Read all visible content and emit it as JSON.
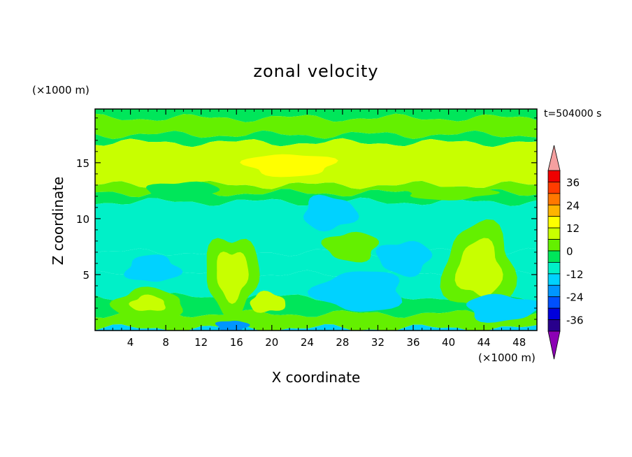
{
  "chart_data": {
    "type": "heatmap",
    "title": "zonal velocity",
    "xlabel": "X coordinate",
    "ylabel": "Z coordinate",
    "x_unit_label": "(×1000 m)",
    "y_unit_label": "(×1000 m)",
    "time_label": "t=504000 s",
    "xlim": [
      0,
      50
    ],
    "ylim": [
      0,
      19.8
    ],
    "x_ticks": [
      4,
      8,
      12,
      16,
      20,
      24,
      28,
      32,
      36,
      40,
      44,
      48
    ],
    "y_ticks": [
      5,
      10,
      15
    ],
    "colorbar": {
      "tick_labels": [
        "36",
        "24",
        "12",
        "0",
        "-12",
        "-24",
        "-36"
      ],
      "tick_values": [
        36,
        24,
        12,
        0,
        -12,
        -24,
        -36
      ],
      "levels": [
        {
          "from": 36,
          "to": 42,
          "color": "#f00000"
        },
        {
          "from": 30,
          "to": 36,
          "color": "#ff3c00"
        },
        {
          "from": 24,
          "to": 30,
          "color": "#ff7800"
        },
        {
          "from": 18,
          "to": 24,
          "color": "#ffb400"
        },
        {
          "from": 12,
          "to": 18,
          "color": "#ffff00"
        },
        {
          "from": 6,
          "to": 12,
          "color": "#c8ff00"
        },
        {
          "from": 0,
          "to": 6,
          "color": "#64f000"
        },
        {
          "from": -6,
          "to": 0,
          "color": "#00e65a"
        },
        {
          "from": -12,
          "to": -6,
          "color": "#00f0c8"
        },
        {
          "from": -18,
          "to": -12,
          "color": "#00d2ff"
        },
        {
          "from": -24,
          "to": -18,
          "color": "#0096ff"
        },
        {
          "from": -30,
          "to": -24,
          "color": "#0050ff"
        },
        {
          "from": -36,
          "to": -30,
          "color": "#0000dc"
        },
        {
          "from": -42,
          "to": -36,
          "color": "#28008c"
        }
      ],
      "over_color": "#f5a0a0",
      "under_color": "#8c00b4"
    },
    "field_bands": [
      {
        "z": [
          19.0,
          19.8
        ],
        "u": -3
      },
      {
        "z": [
          17.5,
          19.0
        ],
        "u": 2
      },
      {
        "z": [
          16.8,
          17.5
        ],
        "u": -3
      },
      {
        "z": [
          13.0,
          16.8
        ],
        "u": 8
      },
      {
        "z": [
          12.3,
          13.0
        ],
        "u": 3
      },
      {
        "z": [
          11.5,
          12.3
        ],
        "u": -3
      },
      {
        "z": [
          7.0,
          11.5
        ],
        "u": -9
      },
      {
        "z": [
          5.0,
          7.0
        ],
        "u": -8
      },
      {
        "z": [
          3.0,
          5.0
        ],
        "u": -10
      },
      {
        "z": [
          1.5,
          3.0
        ],
        "u": -3
      },
      {
        "z": [
          0.2,
          1.5
        ],
        "u": 2
      },
      {
        "z": [
          0.0,
          0.2
        ],
        "u": -13
      }
    ],
    "field_blobs": [
      {
        "x": 15.5,
        "z": 5.0,
        "rx": 3.0,
        "rz": 3.5,
        "u": 5
      },
      {
        "x": 15.5,
        "z": 5.0,
        "rx": 1.8,
        "rz": 2.2,
        "u": 9
      },
      {
        "x": 43.5,
        "z": 5.5,
        "rx": 4.0,
        "rz": 4.0,
        "u": 5
      },
      {
        "x": 43.5,
        "z": 5.5,
        "rx": 2.5,
        "rz": 2.5,
        "u": 9
      },
      {
        "x": 6.0,
        "z": 2.4,
        "rx": 4.0,
        "rz": 1.3,
        "u": 5
      },
      {
        "x": 6.0,
        "z": 2.4,
        "rx": 2.0,
        "rz": 0.7,
        "u": 9
      },
      {
        "x": 19.5,
        "z": 2.5,
        "rx": 2.0,
        "rz": 0.9,
        "u": 9
      },
      {
        "x": 30.0,
        "z": 3.5,
        "rx": 5.0,
        "rz": 1.8,
        "u": -13
      },
      {
        "x": 35.0,
        "z": 6.5,
        "rx": 3.0,
        "rz": 1.5,
        "u": -13
      },
      {
        "x": 6.5,
        "z": 5.5,
        "rx": 3.0,
        "rz": 1.2,
        "u": -13
      },
      {
        "x": 26.5,
        "z": 10.5,
        "rx": 3.0,
        "rz": 1.5,
        "u": -13
      },
      {
        "x": 29.0,
        "z": 7.5,
        "rx": 3.0,
        "rz": 1.3,
        "u": 2
      },
      {
        "x": 46.0,
        "z": 2.0,
        "rx": 4.0,
        "rz": 1.2,
        "u": -13
      },
      {
        "x": 15.5,
        "z": 0.4,
        "rx": 1.8,
        "rz": 0.5,
        "u": -19
      },
      {
        "x": 22.0,
        "z": 14.8,
        "rx": 5.0,
        "rz": 1.0,
        "u": 14
      },
      {
        "x": 10.0,
        "z": 12.5,
        "rx": 4.0,
        "rz": 0.8,
        "u": -3
      },
      {
        "x": 40.0,
        "z": 12.3,
        "rx": 5.0,
        "rz": 0.6,
        "u": 3
      }
    ]
  }
}
